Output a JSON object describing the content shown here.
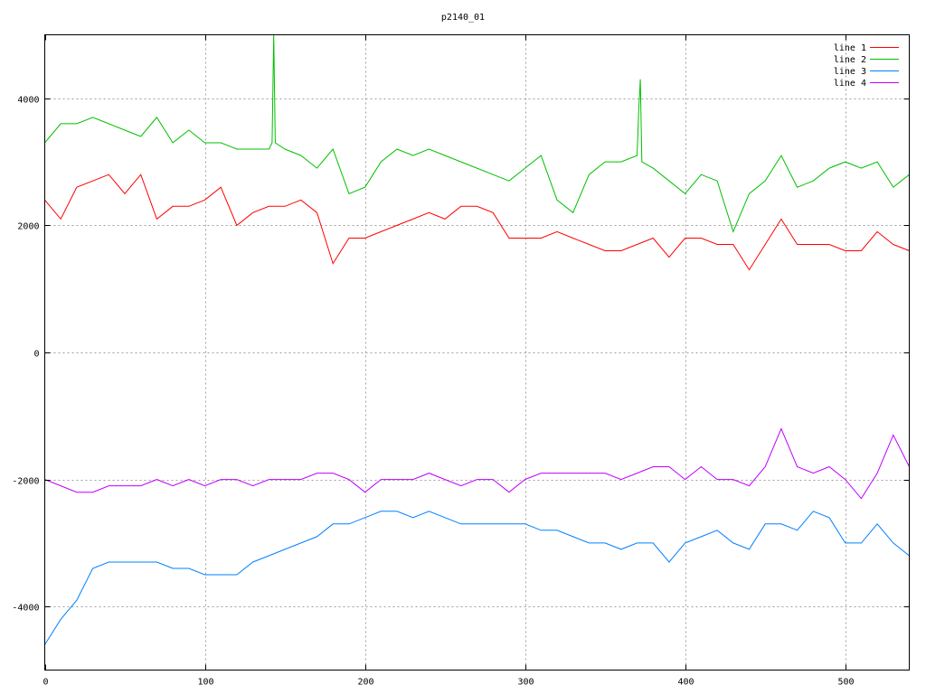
{
  "chart_data": {
    "type": "line",
    "title": "p2140_01",
    "xlabel": "",
    "ylabel": "",
    "xlim": [
      0,
      540
    ],
    "ylim": [
      -5000,
      5000
    ],
    "xticks": [
      "0",
      "100",
      "200",
      "300",
      "400",
      "500"
    ],
    "xtick_values": [
      0,
      100,
      200,
      300,
      400,
      500
    ],
    "yticks": [
      "-4000",
      "-2000",
      "0",
      "2000",
      "4000"
    ],
    "ytick_values": [
      -4000,
      -2000,
      0,
      2000,
      4000
    ],
    "grid": true,
    "legend_position": "top-right",
    "series": [
      {
        "name": "line 1",
        "color": "#ff0000",
        "x": [
          0,
          10,
          20,
          30,
          40,
          50,
          60,
          70,
          80,
          90,
          100,
          110,
          120,
          130,
          140,
          150,
          160,
          170,
          180,
          190,
          200,
          210,
          220,
          230,
          240,
          250,
          260,
          270,
          280,
          290,
          300,
          310,
          320,
          330,
          340,
          350,
          360,
          370,
          380,
          390,
          400,
          410,
          420,
          430,
          440,
          450,
          460,
          470,
          480,
          490,
          500,
          510,
          520,
          530,
          540
        ],
        "y": [
          2400,
          2100,
          2600,
          2700,
          2800,
          2500,
          2800,
          2100,
          2300,
          2300,
          2400,
          2600,
          2000,
          2200,
          2300,
          2300,
          2400,
          2200,
          1400,
          1800,
          1800,
          1900,
          2000,
          2100,
          2200,
          2100,
          2300,
          2300,
          2200,
          1800,
          1800,
          1800,
          1900,
          1800,
          1700,
          1600,
          1600,
          1700,
          1800,
          1500,
          1800,
          1800,
          1700,
          1700,
          1300,
          1700,
          2100,
          1700,
          1700,
          1700,
          1600,
          1600,
          1900,
          1700,
          1600
        ]
      },
      {
        "name": "line 2",
        "color": "#00c000",
        "x": [
          0,
          10,
          20,
          30,
          40,
          50,
          60,
          70,
          80,
          90,
          100,
          110,
          120,
          130,
          140,
          142,
          143,
          144,
          150,
          160,
          170,
          180,
          190,
          200,
          210,
          220,
          230,
          240,
          250,
          260,
          270,
          280,
          290,
          300,
          310,
          320,
          330,
          340,
          350,
          360,
          370,
          371,
          372,
          373,
          380,
          390,
          400,
          410,
          420,
          430,
          440,
          450,
          460,
          470,
          480,
          490,
          500,
          510,
          520,
          530,
          540
        ],
        "y": [
          3300,
          3600,
          3600,
          3700,
          3600,
          3500,
          3400,
          3700,
          3300,
          3500,
          3300,
          3300,
          3200,
          3200,
          3200,
          3300,
          5000,
          3300,
          3200,
          3100,
          2900,
          3200,
          2500,
          2600,
          3000,
          3200,
          3100,
          3200,
          3100,
          3000,
          2900,
          2800,
          2700,
          2900,
          3100,
          2400,
          2200,
          2800,
          3000,
          3000,
          3100,
          3800,
          4300,
          3000,
          2900,
          2700,
          2500,
          2800,
          2700,
          1900,
          2500,
          2700,
          3100,
          2600,
          2700,
          2900,
          3000,
          2900,
          3000,
          2600,
          2800
        ]
      },
      {
        "name": "line 3",
        "color": "#0080ff",
        "x": [
          0,
          10,
          20,
          30,
          40,
          50,
          60,
          70,
          80,
          90,
          100,
          110,
          120,
          130,
          140,
          150,
          160,
          170,
          180,
          190,
          200,
          210,
          220,
          230,
          240,
          250,
          260,
          270,
          280,
          290,
          300,
          310,
          320,
          330,
          340,
          350,
          360,
          370,
          380,
          390,
          400,
          410,
          420,
          430,
          440,
          450,
          460,
          470,
          480,
          490,
          500,
          510,
          520,
          530,
          540
        ],
        "y": [
          -4600,
          -4200,
          -3900,
          -3400,
          -3300,
          -3300,
          -3300,
          -3300,
          -3400,
          -3400,
          -3500,
          -3500,
          -3500,
          -3300,
          -3200,
          -3100,
          -3000,
          -2900,
          -2700,
          -2700,
          -2600,
          -2500,
          -2500,
          -2600,
          -2500,
          -2600,
          -2700,
          -2700,
          -2700,
          -2700,
          -2700,
          -2800,
          -2800,
          -2900,
          -3000,
          -3000,
          -3100,
          -3000,
          -3000,
          -3300,
          -3000,
          -2900,
          -2800,
          -3000,
          -3100,
          -2700,
          -2700,
          -2800,
          -2500,
          -2600,
          -3000,
          -3000,
          -2700,
          -3000,
          -3200
        ]
      },
      {
        "name": "line 4",
        "color": "#c000ff",
        "x": [
          0,
          10,
          20,
          30,
          40,
          50,
          60,
          70,
          80,
          90,
          100,
          110,
          120,
          130,
          140,
          150,
          160,
          170,
          180,
          190,
          200,
          210,
          220,
          230,
          240,
          250,
          260,
          270,
          280,
          290,
          300,
          310,
          320,
          330,
          340,
          350,
          360,
          370,
          380,
          390,
          400,
          410,
          420,
          430,
          440,
          450,
          460,
          470,
          480,
          490,
          500,
          510,
          520,
          530,
          540
        ],
        "y": [
          -2000,
          -2100,
          -2200,
          -2200,
          -2100,
          -2100,
          -2100,
          -2000,
          -2100,
          -2000,
          -2100,
          -2000,
          -2000,
          -2100,
          -2000,
          -2000,
          -2000,
          -1900,
          -1900,
          -2000,
          -2200,
          -2000,
          -2000,
          -2000,
          -1900,
          -2000,
          -2100,
          -2000,
          -2000,
          -2200,
          -2000,
          -1900,
          -1900,
          -1900,
          -1900,
          -1900,
          -2000,
          -1900,
          -1800,
          -1800,
          -2000,
          -1800,
          -2000,
          -2000,
          -2100,
          -1800,
          -1200,
          -1800,
          -1900,
          -1800,
          -2000,
          -2300,
          -1900,
          -1300,
          -1800
        ]
      }
    ]
  }
}
